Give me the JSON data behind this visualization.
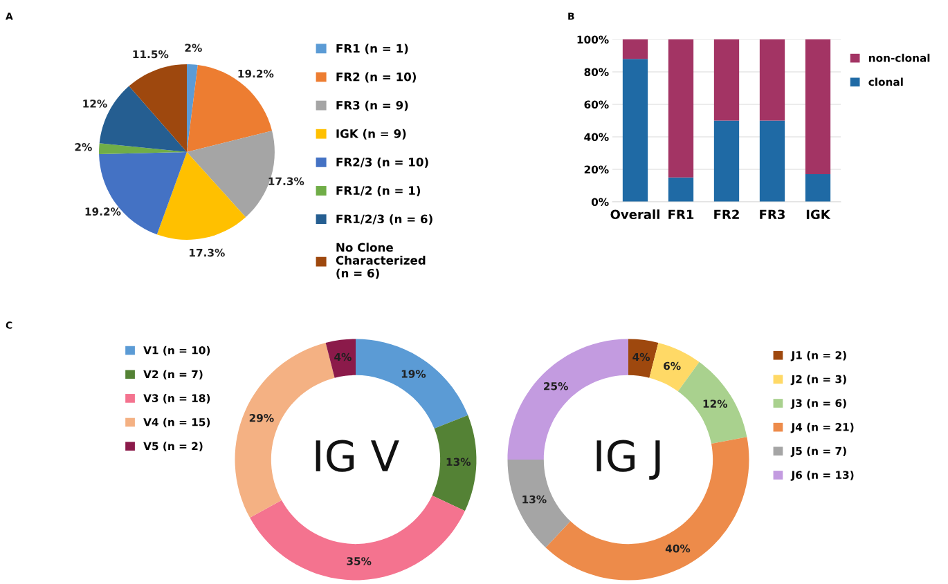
{
  "chart_data": [
    {
      "type": "pie",
      "categories": [
        "FR1 (n = 1)",
        "FR2 (n = 10)",
        "FR3 (n = 9)",
        "IGK (n = 9)",
        "FR2/3 (n = 10)",
        "FR1/2 (n = 1)",
        "FR1/2/3 (n = 6)",
        "No Clone Characterized (n = 6)"
      ],
      "values": [
        2,
        19.2,
        17.3,
        17.3,
        19.2,
        2,
        12,
        11.5
      ],
      "value_labels": [
        "2%",
        "19.2%",
        "17.3%",
        "17.3%",
        "19.2%",
        "2%",
        "12%",
        "11.5%"
      ],
      "colors": [
        "#5b9bd5",
        "#ed7d31",
        "#a5a5a5",
        "#ffc000",
        "#4472c4",
        "#70ad47",
        "#255e91",
        "#9e480e"
      ],
      "legend": "right",
      "annotations": [
        "A"
      ]
    },
    {
      "type": "bar",
      "stacked": true,
      "categories": [
        "Overall",
        "FR1",
        "FR2",
        "FR3",
        "IGK"
      ],
      "series": [
        {
          "name": "clonal",
          "color": "#1f6aa5",
          "values": [
            88,
            15,
            50,
            50,
            17
          ]
        },
        {
          "name": "non-clonal",
          "color": "#a33464",
          "values": [
            12,
            85,
            50,
            50,
            83
          ]
        }
      ],
      "ylim": [
        0,
        100
      ],
      "yticks": [
        {
          "value": 0,
          "label": "0%"
        },
        {
          "value": 20,
          "label": "20%"
        },
        {
          "value": 40,
          "label": "40%"
        },
        {
          "value": 60,
          "label": "60%"
        },
        {
          "value": 80,
          "label": "80%"
        },
        {
          "value": 100,
          "label": "100%"
        }
      ],
      "grid": "y",
      "legend": "right",
      "annotations": [
        "B"
      ]
    },
    {
      "type": "donut",
      "categories": [
        "V1 (n = 10)",
        "V2 (n = 7)",
        "V3 (n = 18)",
        "V4 (n = 15)",
        "V5 (n = 2)"
      ],
      "values": [
        19,
        13,
        35,
        29,
        4
      ],
      "value_labels": [
        "19%",
        "13%",
        "35%",
        "29%",
        "4%"
      ],
      "colors": [
        "#5b9bd5",
        "#548235",
        "#f4738f",
        "#f4b183",
        "#8b1a4a"
      ],
      "legend": "left",
      "annotations": [
        "C",
        "IG V"
      ]
    },
    {
      "type": "donut",
      "categories": [
        "J1 (n = 2)",
        "J2 (n = 3)",
        "J3 (n = 6)",
        "J4 (n = 21)",
        "J5 (n = 7)",
        "J6 (n = 13)"
      ],
      "values": [
        4,
        6,
        12,
        40,
        13,
        25
      ],
      "value_labels": [
        "4%",
        "6%",
        "12%",
        "40%",
        "13%",
        "25%"
      ],
      "colors": [
        "#9e480e",
        "#ffd966",
        "#a9d18e",
        "#ed8b4a",
        "#a5a5a5",
        "#c39be0"
      ],
      "legend": "right",
      "annotations": [
        "IG J"
      ]
    }
  ]
}
